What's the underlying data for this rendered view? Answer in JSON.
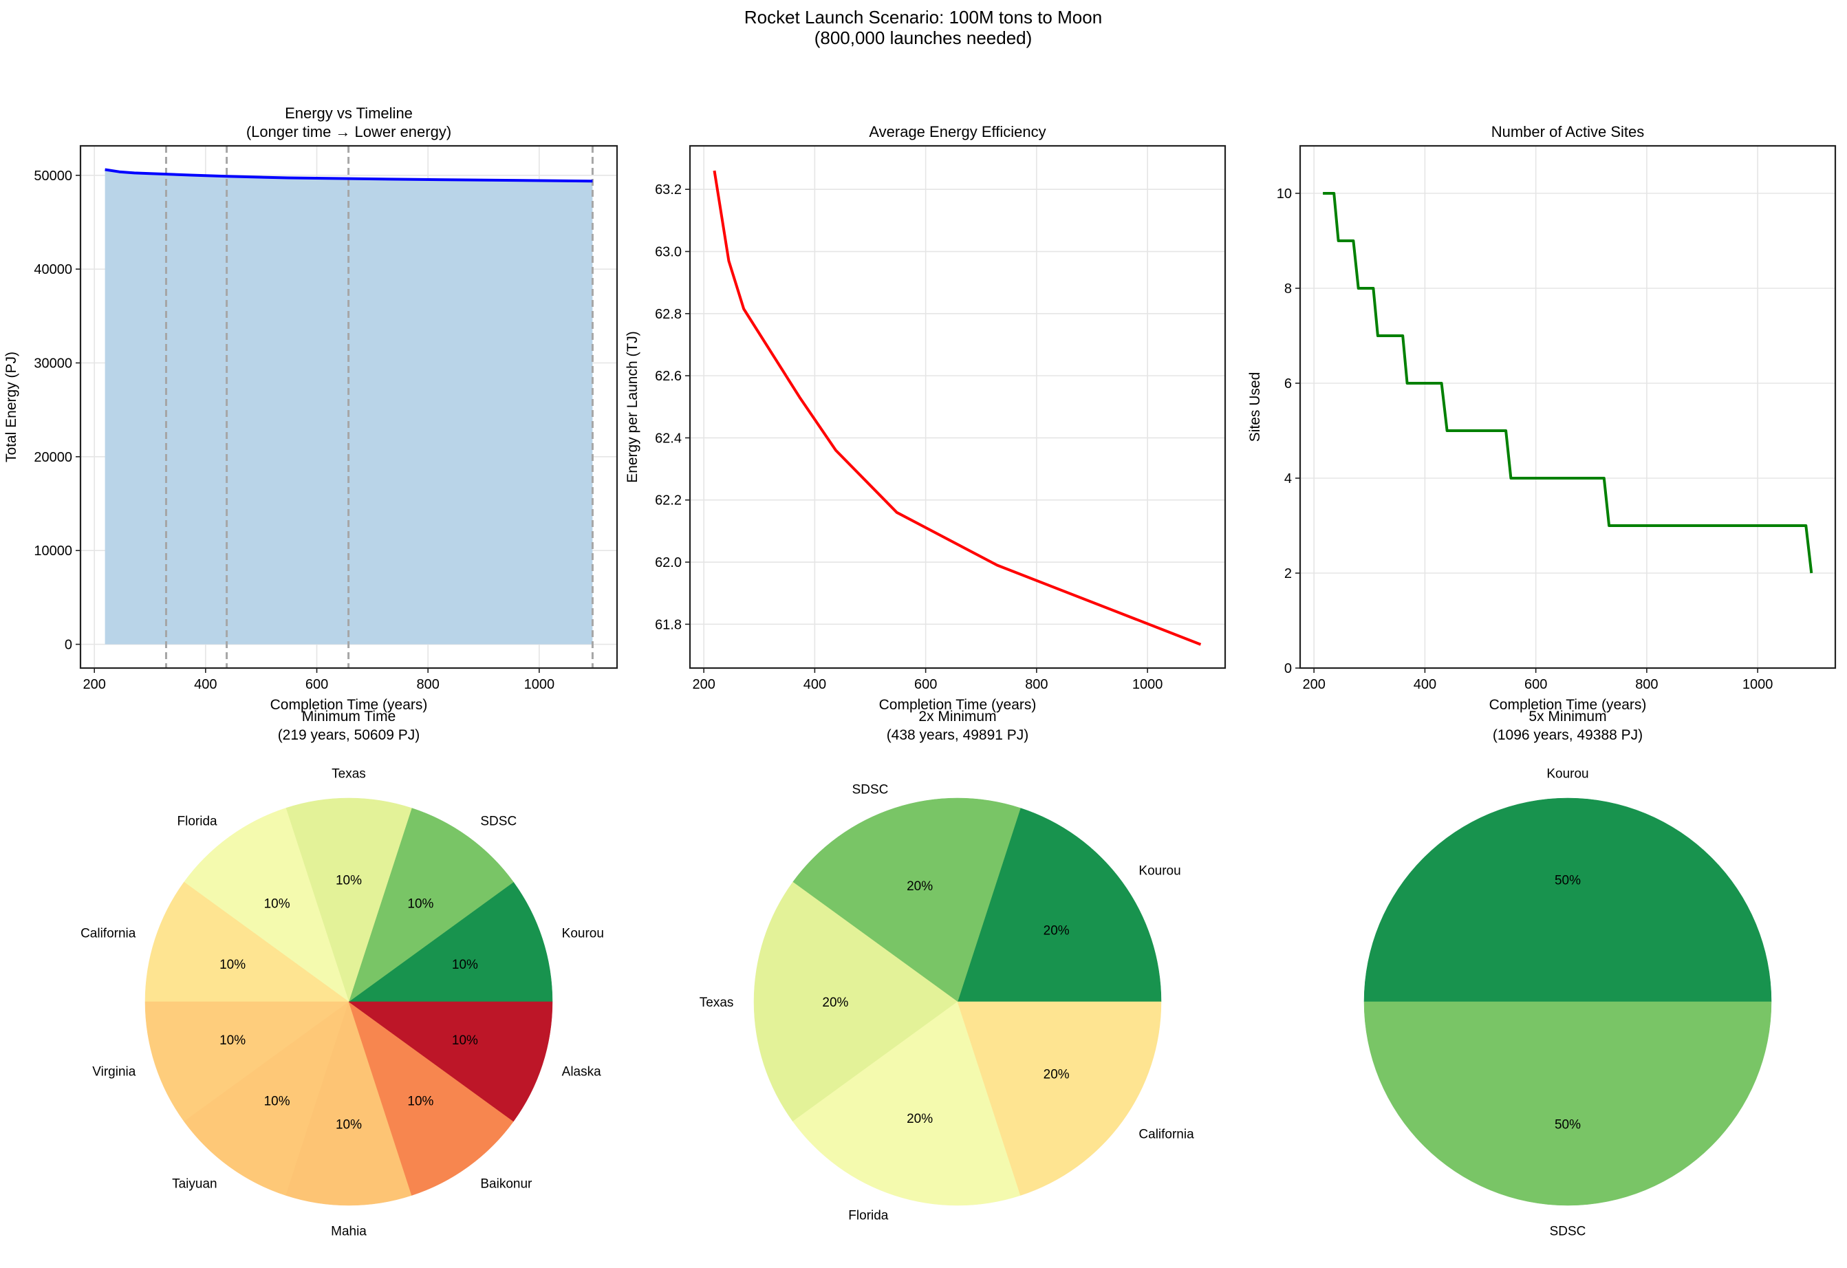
{
  "suptitle": [
    "Rocket Launch Scenario: 100M tons to Moon",
    "(800,000 launches needed)"
  ],
  "chart_data": [
    {
      "type": "area",
      "title": [
        "Energy vs Timeline",
        "(Longer time → Lower energy)"
      ],
      "xlabel": "Completion Time (years)",
      "ylabel": "Total Energy (PJ)",
      "xlim": [
        175,
        1140
      ],
      "ylim": [
        -2530,
        53140
      ],
      "xticks": [
        200,
        400,
        600,
        800,
        1000
      ],
      "xtick_labels": [
        "200",
        "400",
        "600",
        "800",
        "1000"
      ],
      "yticks": [
        0,
        10000,
        20000,
        30000,
        40000,
        50000
      ],
      "ytick_labels": [
        "0",
        "10000",
        "20000",
        "30000",
        "40000",
        "50000"
      ],
      "grid": true,
      "x": [
        219,
        245,
        272,
        373,
        438,
        548,
        729,
        1096
      ],
      "y": [
        50609,
        50376,
        50252,
        50024,
        49891,
        49728,
        49592,
        49388
      ],
      "line_color": "#0000ff",
      "fill_color": "#b9d4e8",
      "vlines": [
        329,
        438,
        657,
        1096
      ],
      "vline_color": "#a6a6a6"
    },
    {
      "type": "line",
      "title": [
        "Average Energy Efficiency"
      ],
      "xlabel": "Completion Time (years)",
      "ylabel": "Energy per Launch (TJ)",
      "xlim": [
        175,
        1140
      ],
      "ylim": [
        61.659,
        63.34
      ],
      "xticks": [
        200,
        400,
        600,
        800,
        1000
      ],
      "xtick_labels": [
        "200",
        "400",
        "600",
        "800",
        "1000"
      ],
      "yticks": [
        61.8,
        62.0,
        62.2,
        62.4,
        62.6,
        62.8,
        63.0,
        63.2
      ],
      "ytick_labels": [
        "61.8",
        "62.0",
        "62.2",
        "62.4",
        "62.6",
        "62.8",
        "63.0",
        "63.2"
      ],
      "grid": true,
      "x": [
        219,
        245,
        272,
        373,
        438,
        548,
        729,
        1096
      ],
      "y": [
        63.26,
        62.97,
        62.815,
        62.53,
        62.36,
        62.16,
        61.99,
        61.735
      ],
      "line_color": "#ff0000"
    },
    {
      "type": "line",
      "title": [
        "Number of Active Sites"
      ],
      "xlabel": "Completion Time (years)",
      "ylabel": "Sites Used",
      "xlim": [
        175,
        1140
      ],
      "ylim": [
        0,
        11
      ],
      "xticks": [
        200,
        400,
        600,
        800,
        1000
      ],
      "xtick_labels": [
        "200",
        "400",
        "600",
        "800",
        "1000"
      ],
      "yticks": [
        0,
        2,
        4,
        6,
        8,
        10
      ],
      "ytick_labels": [
        "0",
        "2",
        "4",
        "6",
        "8",
        "10"
      ],
      "grid": true,
      "x": [
        216,
        236,
        244,
        271,
        280,
        307,
        315,
        360,
        368,
        430,
        440,
        546,
        555,
        723,
        732,
        1087,
        1097
      ],
      "y": [
        10,
        10,
        9,
        9,
        8,
        8,
        7,
        7,
        6,
        6,
        5,
        5,
        4,
        4,
        3,
        3,
        2
      ],
      "line_color": "#008000"
    },
    {
      "type": "pie",
      "title": [
        "Minimum Time",
        "(219 years, 50609 PJ)"
      ],
      "labels": [
        "Kourou",
        "SDSC",
        "Texas",
        "Florida",
        "California",
        "Virginia",
        "Taiyuan",
        "Mahia",
        "Baikonur",
        "Alaska"
      ],
      "values": [
        10,
        10,
        10,
        10,
        10,
        10,
        10,
        10,
        10,
        10
      ],
      "pct_labels": [
        "10%",
        "10%",
        "10%",
        "10%",
        "10%",
        "10%",
        "10%",
        "10%",
        "10%",
        "10%"
      ],
      "colors": [
        "#18934e",
        "#79c566",
        "#e3f298",
        "#f4faae",
        "#fee491",
        "#fecd7c",
        "#fec877",
        "#fdc474",
        "#f7864f",
        "#bd1628"
      ]
    },
    {
      "type": "pie",
      "title": [
        "2x Minimum",
        "(438 years, 49891 PJ)"
      ],
      "labels": [
        "Kourou",
        "SDSC",
        "Texas",
        "Florida",
        "California"
      ],
      "values": [
        20,
        20,
        20,
        20,
        20
      ],
      "pct_labels": [
        "20%",
        "20%",
        "20%",
        "20%",
        "20%"
      ],
      "colors": [
        "#18934e",
        "#79c566",
        "#e3f298",
        "#f4faae",
        "#fee491"
      ]
    },
    {
      "type": "pie",
      "title": [
        "5x Minimum",
        "(1096 years, 49388 PJ)"
      ],
      "labels": [
        "Kourou",
        "SDSC"
      ],
      "values": [
        50,
        50
      ],
      "pct_labels": [
        "50%",
        "50%"
      ],
      "colors": [
        "#18934e",
        "#79c566"
      ]
    }
  ]
}
